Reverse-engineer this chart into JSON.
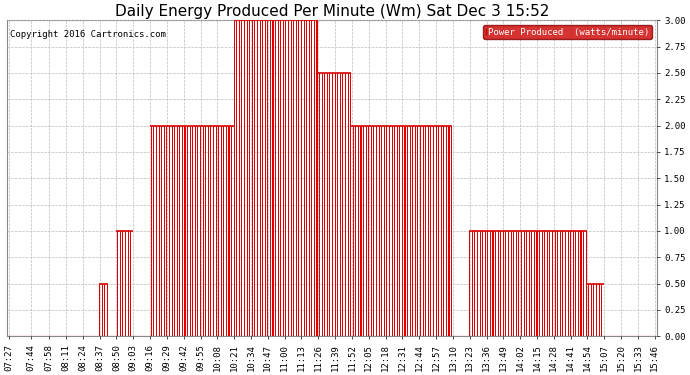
{
  "title": "Daily Energy Produced Per Minute (Wm) Sat Dec 3 15:52",
  "copyright": "Copyright 2016 Cartronics.com",
  "legend_label": "Power Produced  (watts/minute)",
  "legend_bg": "#cc0000",
  "legend_text_color": "#ffffff",
  "bar_color": "#dd0000",
  "bg_color": "#ffffff",
  "grid_color": "#bbbbbb",
  "title_fontsize": 11,
  "tick_fontsize": 6.5,
  "ylim": [
    0.0,
    3.0
  ],
  "yticks": [
    0.0,
    0.25,
    0.5,
    0.75,
    1.0,
    1.25,
    1.5,
    1.75,
    2.0,
    2.25,
    2.5,
    2.75,
    3.0
  ],
  "segments": [
    {
      "start": "07:27",
      "end": "08:37",
      "ceiling": 0.0
    },
    {
      "start": "08:37",
      "end": "08:44",
      "ceiling": 0.5
    },
    {
      "start": "08:44",
      "end": "08:50",
      "ceiling": 0.0
    },
    {
      "start": "08:50",
      "end": "09:03",
      "ceiling": 1.0
    },
    {
      "start": "09:03",
      "end": "09:16",
      "ceiling": 0.0
    },
    {
      "start": "09:16",
      "end": "09:42",
      "ceiling": 2.0
    },
    {
      "start": "09:42",
      "end": "09:55",
      "ceiling": 2.0
    },
    {
      "start": "09:55",
      "end": "10:21",
      "ceiling": 2.0
    },
    {
      "start": "10:21",
      "end": "11:26",
      "ceiling": 3.0
    },
    {
      "start": "11:26",
      "end": "11:52",
      "ceiling": 2.5
    },
    {
      "start": "11:52",
      "end": "13:10",
      "ceiling": 2.0
    },
    {
      "start": "13:10",
      "end": "13:23",
      "ceiling": 0.0
    },
    {
      "start": "13:23",
      "end": "14:54",
      "ceiling": 1.0
    },
    {
      "start": "14:54",
      "end": "15:07",
      "ceiling": 0.5
    },
    {
      "start": "15:07",
      "end": "15:46",
      "ceiling": 0.0
    }
  ],
  "x_tick_labels": [
    "07:27",
    "07:44",
    "07:58",
    "08:11",
    "08:24",
    "08:37",
    "08:50",
    "09:03",
    "09:16",
    "09:29",
    "09:42",
    "09:55",
    "10:08",
    "10:21",
    "10:34",
    "10:47",
    "11:00",
    "11:13",
    "11:26",
    "11:39",
    "11:52",
    "12:05",
    "12:18",
    "12:31",
    "12:44",
    "12:57",
    "13:10",
    "13:23",
    "13:36",
    "13:49",
    "14:02",
    "14:15",
    "14:28",
    "14:41",
    "14:54",
    "15:07",
    "15:20",
    "15:33",
    "15:46"
  ]
}
